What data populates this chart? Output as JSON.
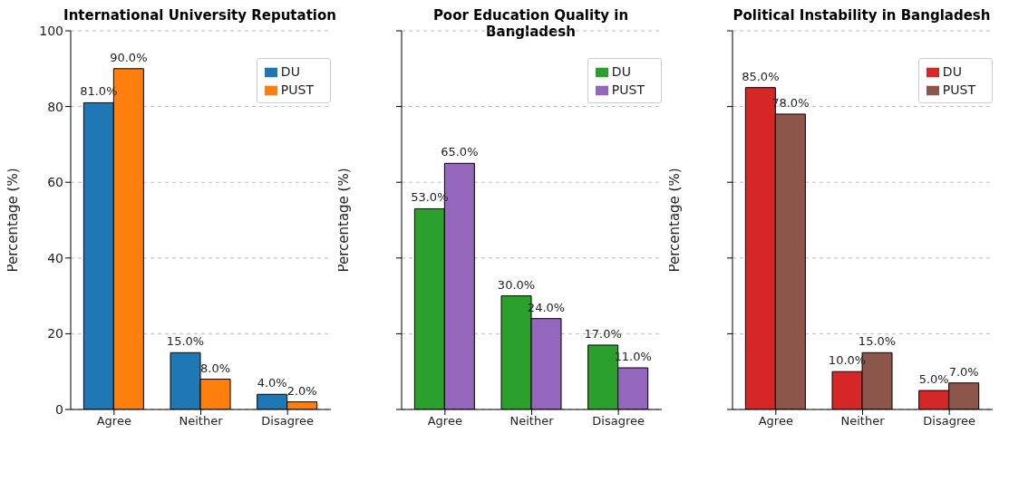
{
  "chart_data": [
    {
      "type": "bar",
      "title": "International University Reputation",
      "ylabel": "Percentage (%)",
      "categories": [
        "Agree",
        "Neither",
        "Disagree"
      ],
      "series": [
        {
          "name": "DU",
          "color": "#1f77b4",
          "values": [
            81,
            15,
            4
          ],
          "value_labels": [
            "81.0%",
            "15.0%",
            "4.0%"
          ]
        },
        {
          "name": "PUST",
          "color": "#ff7f0e",
          "values": [
            90,
            8,
            2
          ],
          "value_labels": [
            "90.0%",
            "8.0%",
            "2.0%"
          ]
        }
      ],
      "ylim": [
        0,
        100
      ],
      "yticks": [
        0,
        20,
        40,
        60,
        80,
        100
      ],
      "grid": "y",
      "legend": "top right"
    },
    {
      "type": "bar",
      "title": "Poor Education Quality in Bangladesh",
      "ylabel": "Percentage (%)",
      "categories": [
        "Agree",
        "Neither",
        "Disagree"
      ],
      "series": [
        {
          "name": "DU",
          "color": "#2ca02c",
          "values": [
            53,
            30,
            17
          ],
          "value_labels": [
            "53.0%",
            "30.0%",
            "17.0%"
          ]
        },
        {
          "name": "PUST",
          "color": "#9467bd",
          "values": [
            65,
            24,
            11
          ],
          "value_labels": [
            "65.0%",
            "24.0%",
            "11.0%"
          ]
        }
      ],
      "ylim": [
        0,
        100
      ],
      "yticks": [
        0,
        20,
        40,
        60,
        80,
        100
      ],
      "grid": "y",
      "legend": "top right",
      "tick_labels": "x"
    },
    {
      "type": "bar",
      "title": "Political Instability in Bangladesh",
      "ylabel": "Percentage (%)",
      "categories": [
        "Agree",
        "Neither",
        "Disagree"
      ],
      "series": [
        {
          "name": "DU",
          "color": "#d62728",
          "values": [
            85,
            10,
            5
          ],
          "value_labels": [
            "85.0%",
            "10.0%",
            "5.0%"
          ]
        },
        {
          "name": "PUST",
          "color": "#8c564b",
          "values": [
            78,
            15,
            7
          ],
          "value_labels": [
            "78.0%",
            "15.0%",
            "7.0%"
          ]
        }
      ],
      "ylim": [
        0,
        100
      ],
      "yticks": [
        0,
        20,
        40,
        60,
        80,
        100
      ],
      "grid": "y",
      "legend": "top right",
      "tick_labels": "x"
    }
  ]
}
